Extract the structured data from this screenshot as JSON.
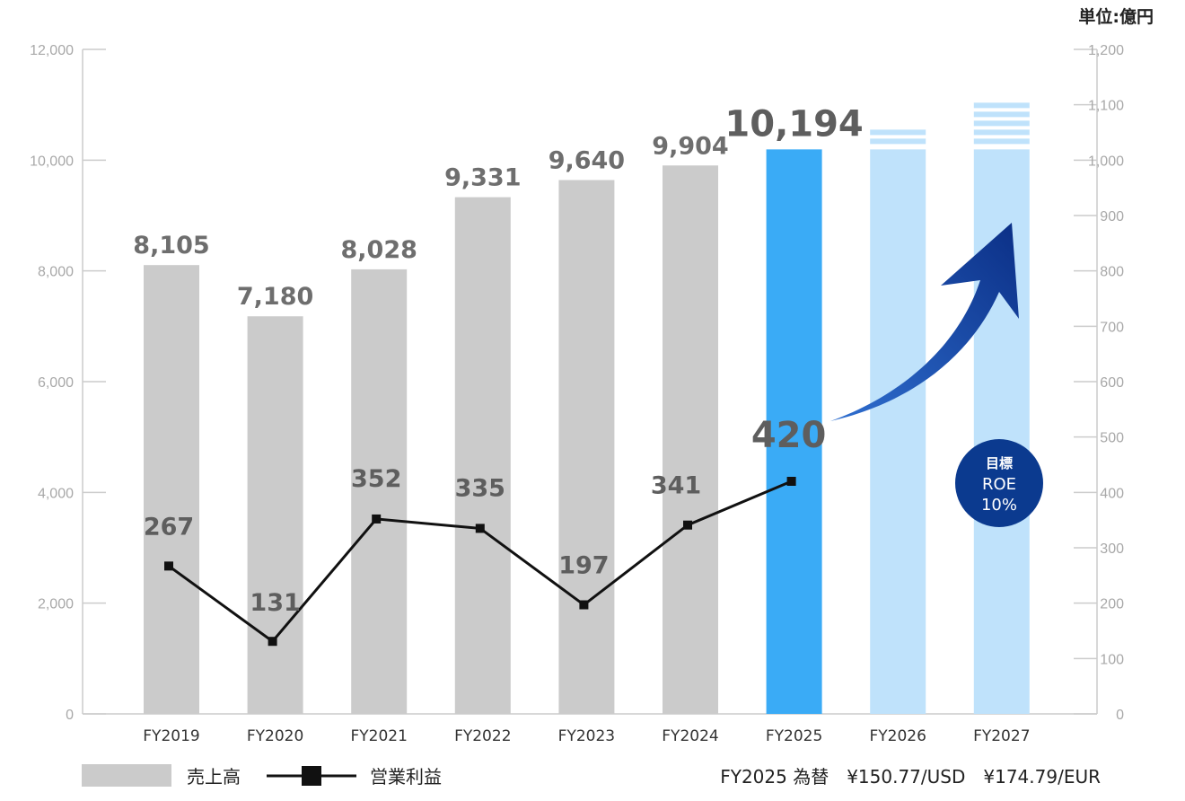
{
  "chart_data": {
    "type": "bar",
    "unit_label": "単位:億円",
    "categories": [
      "FY2019",
      "FY2020",
      "FY2021",
      "FY2022",
      "FY2023",
      "FY2024",
      "FY2025",
      "FY2026",
      "FY2027"
    ],
    "left_axis": {
      "ylim": [
        0,
        12000
      ],
      "ticks": [
        "0",
        "2,000",
        "4,000",
        "6,000",
        "8,000",
        "10,000",
        "12,000"
      ]
    },
    "right_axis": {
      "ylim": [
        0,
        1200
      ],
      "ticks": [
        "0",
        "100",
        "200",
        "300",
        "400",
        "500",
        "600",
        "700",
        "800",
        "900",
        "1,000",
        "1,100",
        "1,200"
      ]
    },
    "series": [
      {
        "name": "売上高",
        "kind": "bar",
        "axis": "left",
        "values": [
          8105,
          7180,
          8028,
          9331,
          9640,
          9904,
          10194,
          null,
          null
        ],
        "labels": [
          "8,105",
          "7,180",
          "8,028",
          "9,331",
          "9,640",
          "9,904",
          "10,194",
          "",
          ""
        ]
      },
      {
        "name": "営業利益",
        "kind": "line",
        "axis": "right",
        "values": [
          267,
          131,
          352,
          335,
          197,
          341,
          420,
          null,
          null
        ],
        "labels": [
          "267",
          "131",
          "352",
          "335",
          "197",
          "341",
          "420",
          "",
          ""
        ]
      }
    ],
    "target_bars": {
      "categories": [
        "FY2026",
        "FY2027"
      ],
      "values": [
        10650,
        11150
      ]
    },
    "colors": {
      "actual_bar": "#cbcbcb",
      "highlight_bar": "#3aabf6",
      "target_bar": "#bfe2fb",
      "line": "#111111",
      "arrow": "#0b3a8f",
      "badge": "#0b3a8f"
    },
    "highlight_category": "FY2025",
    "badge": {
      "line1": "目標",
      "line2": "ROE",
      "line3": "10%"
    },
    "legend": {
      "bar_label": "売上高",
      "line_label": "営業利益",
      "position": "bottom-left"
    },
    "fx_note": "FY2025 為替　¥150.77/USD　¥174.79/EUR",
    "grid": false
  }
}
